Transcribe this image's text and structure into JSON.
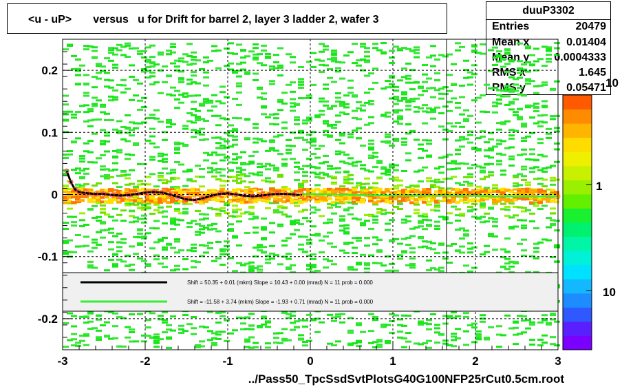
{
  "title": "<u - uP>       versus   u for Drift for barrel 2, layer 3 ladder 2, wafer 3",
  "stats": {
    "name": "duuP3302",
    "rows": [
      {
        "label": "Entries",
        "value": "20479"
      },
      {
        "label": "Mean x",
        "value": "0.01404"
      },
      {
        "label": "Mean y",
        "value": "0.0004333"
      },
      {
        "label": "RMS x",
        "value": "1.645"
      },
      {
        "label": "RMS y",
        "value": "0.05471"
      }
    ]
  },
  "xaxis_title": "../Pass50_TpcSsdSvtPlotsG40G100NFP25rCut0.5cm.root",
  "colorbar": {
    "labels": [
      "10",
      "1",
      "10"
    ],
    "colors": [
      "#7a00ff",
      "#5a1fff",
      "#2f59ff",
      "#1c8cff",
      "#13b8ff",
      "#00e0ff",
      "#00f0d8",
      "#00f5a6",
      "#00f070",
      "#19f030",
      "#62f000",
      "#9af000",
      "#c8f000",
      "#eef000",
      "#ffdc00",
      "#ffb400",
      "#ff8c00",
      "#ff5a00"
    ]
  },
  "legend": [
    {
      "color": "#000000",
      "text": "Shift =    50.35 + 0.01 (mkm) Slope =    10.43 + 0.00 (mrad)  N = 11 prob = 0.000"
    },
    {
      "color": "#33ee33",
      "text": "Shift =   -11.58 + 3.74 (mkm) Slope =    -1.93 + 0.71 (mrad)  N = 11 prob = 0.000"
    }
  ],
  "chart_data": {
    "type": "heatmap",
    "title": "<u - uP>       versus   u for Drift for barrel 2, layer 3 ladder 2, wafer 3",
    "xlabel": "../Pass50_TpcSsdSvtPlotsG40G100NFP25rCut0.5cm.root",
    "ylabel": "",
    "xlim": [
      -3,
      3
    ],
    "ylim": [
      -0.25,
      0.25
    ],
    "x_ticks": [
      -3,
      -2,
      -1,
      0,
      1,
      2,
      3
    ],
    "x_tick_labels": [
      "-3",
      "-2",
      "-1",
      "0",
      "1",
      "2",
      "3"
    ],
    "y_ticks": [
      -0.2,
      -0.1,
      0,
      0.1,
      0.2
    ],
    "y_tick_labels": [
      "-0.2",
      "-0.1",
      "0",
      "0.1",
      "0.2"
    ],
    "grid": true,
    "log_z": true,
    "series": [
      {
        "name": "Shift = 50.35 + 0.01 (mkm) Slope = 10.43 + 0.00 (mrad)",
        "x": [
          -2.95,
          -2.9,
          -2.85,
          -2.8,
          -2.7,
          -2.6,
          -2.5,
          -2.4,
          -2.3,
          -2.2,
          -2.1,
          -2.0,
          -1.9,
          -1.8,
          -1.7,
          -1.6,
          -1.5,
          -1.4,
          -1.3,
          -1.2,
          -1.1,
          -1.0,
          -0.9,
          -0.8,
          -0.7,
          -0.6,
          -0.5,
          -0.4,
          -0.3,
          -0.2,
          -0.1
        ],
        "y": [
          0.038,
          0.02,
          0.008,
          0.004,
          0.002,
          0.001,
          0.001,
          -0.001,
          -0.002,
          -0.001,
          0.001,
          0.003,
          0.004,
          0.003,
          0.0,
          -0.004,
          -0.008,
          -0.009,
          -0.006,
          -0.002,
          0.001,
          0.002,
          0.0,
          -0.002,
          -0.003,
          -0.002,
          0.0,
          0.001,
          0.001,
          0.0,
          -0.001
        ]
      },
      {
        "name": "Shift = -11.58 + 3.74 (mkm) Slope = -1.93 + 0.71 (mrad)",
        "x": [
          -0.1,
          0.3,
          0.7,
          1.1,
          1.5,
          1.9,
          2.3,
          2.7,
          3.0
        ],
        "y": [
          0.001,
          0.0,
          -0.001,
          -0.002,
          -0.002,
          -0.002,
          -0.003,
          -0.003,
          -0.003
        ]
      }
    ]
  }
}
